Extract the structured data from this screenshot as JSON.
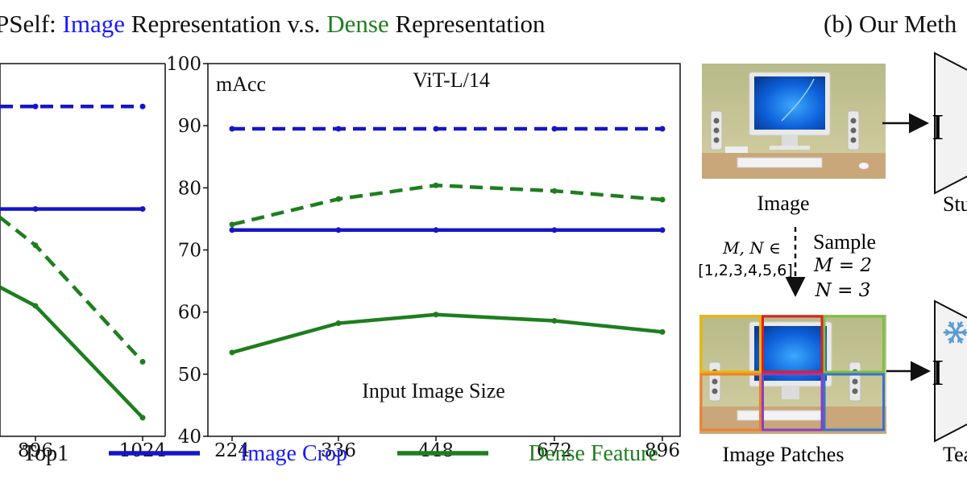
{
  "figure": {
    "title_prefix": "PSelf: ",
    "title_image": "Image",
    "title_mid": " Representation v.s. ",
    "title_dense": "Dense",
    "title_suffix": " Representation",
    "title_b": "(b) Our Meth",
    "legend": {
      "image_crop": "Image Crop",
      "dense_feature": "Dense Feature"
    },
    "diagram": {
      "image_label": "Image",
      "student_label": "Stu",
      "teacher_label": "Tea",
      "encoder_glyph": "I",
      "sample_range": "M, N ∈",
      "sample_set": "[1,2,3,4,5,6]",
      "sample_label": "Sample",
      "m_value": "M = 2",
      "n_value": "N = 3",
      "patches_label": "Image Patches",
      "colors": {
        "patch_colors": [
          "#f0b400",
          "#e02020",
          "#7fbf3f",
          "#ee8030",
          "#8a3fc0",
          "#3a70d0"
        ],
        "snowflake": "#5a9ad8"
      }
    }
  },
  "chart_data": [
    {
      "type": "line",
      "panel": "left (partially visible)",
      "metric_label": "Top1",
      "x": [
        896,
        1024
      ],
      "tick_labels": [
        "896",
        "1024"
      ],
      "series": [
        {
          "name": "Image Crop (dashed)",
          "color": "#1515c8",
          "style": "dashed",
          "values": [
            90.4,
            90.4
          ]
        },
        {
          "name": "Image Crop (solid)",
          "color": "#1515c8",
          "style": "solid",
          "values": [
            79.4,
            79.4
          ]
        },
        {
          "name": "Dense Feature (dashed)",
          "color": "#1e7e1e",
          "style": "dashed",
          "values": [
            75.5,
            63.0
          ]
        },
        {
          "name": "Dense Feature (solid)",
          "color": "#1e7e1e",
          "style": "solid",
          "values": [
            69.0,
            57.0
          ]
        }
      ],
      "partial_lines": [
        {
          "series": "Image Crop (dashed)",
          "start": 90.4
        },
        {
          "series": "Image Crop (solid)",
          "start": 79.4
        },
        {
          "series": "Dense Feature (dashed)",
          "start": 78.5
        },
        {
          "series": "Dense Feature (solid)",
          "start": 71.0
        }
      ],
      "ylim": [
        55,
        95
      ]
    },
    {
      "type": "line",
      "panel": "right",
      "title": "ViT-L/14",
      "metric_label": "mAcc",
      "xlabel": "Input Image Size",
      "x": [
        224,
        336,
        448,
        672,
        896
      ],
      "tick_labels": [
        "224",
        "336",
        "448",
        "672",
        "896"
      ],
      "y_ticks": [
        40,
        50,
        60,
        70,
        80,
        90,
        100
      ],
      "ylim": [
        40,
        100
      ],
      "series": [
        {
          "name": "Image Crop (dashed)",
          "color": "#1515c8",
          "style": "dashed",
          "values": [
            89.5,
            89.5,
            89.5,
            89.5,
            89.5
          ]
        },
        {
          "name": "Image Crop (solid)",
          "color": "#1515c8",
          "style": "solid",
          "values": [
            73.2,
            73.2,
            73.2,
            73.2,
            73.2
          ]
        },
        {
          "name": "Dense Feature (dashed)",
          "color": "#1e7e1e",
          "style": "dashed",
          "values": [
            74.1,
            78.2,
            80.4,
            79.5,
            78.1
          ]
        },
        {
          "name": "Dense Feature (solid)",
          "color": "#1e7e1e",
          "style": "solid",
          "values": [
            53.5,
            58.2,
            59.6,
            58.6,
            56.8
          ]
        }
      ]
    }
  ]
}
